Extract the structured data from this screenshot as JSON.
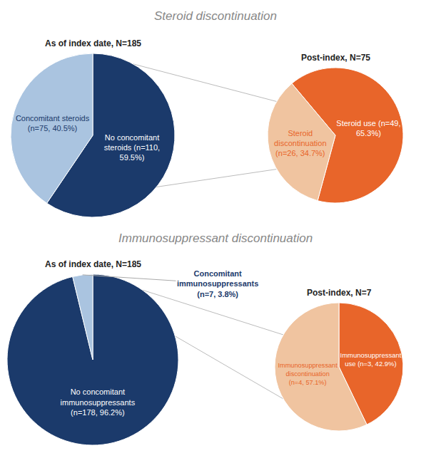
{
  "chart_data": [
    {
      "type": "pie",
      "title": "As of index date, N=185",
      "annotations": [
        {
          "text": "Steroid discontinuation"
        }
      ],
      "categories": [
        "No concomitant\nsteroids (n=110,\n59.5%)",
        "Concomitant steroids\n(n=75, 40.5%)"
      ],
      "values": [
        110,
        75
      ],
      "colors": [
        "#1b3a6b",
        "#aac4e0"
      ]
    },
    {
      "type": "pie",
      "title": "Post-index, N=75",
      "categories": [
        "Steroid use (n=49,\n65.3%)",
        "Steroid\ndiscontinuation\n(n=26, 34.7%)"
      ],
      "values": [
        49,
        26
      ],
      "colors": [
        "#e8652a",
        "#f0c4a0"
      ]
    },
    {
      "type": "pie",
      "title": "As of index date, N=185",
      "annotations": [
        {
          "text": "Immunosuppressant discontinuation"
        }
      ],
      "categories": [
        "No concomitant\nimmunosuppressants\n(n=178, 96.2%)",
        "Concomitant\nimmunosuppressants\n(n=7, 3.8%)"
      ],
      "values": [
        178,
        7
      ],
      "colors": [
        "#1b3a6b",
        "#aac4e0"
      ]
    },
    {
      "type": "pie",
      "title": "Post-index, N=7",
      "categories": [
        "Immunosuppressant\nuse (n=3, 42.9%)",
        "Immunosuppressant\ndiscontinuation\n(n=4, 57.1%)"
      ],
      "values": [
        3,
        4
      ],
      "colors": [
        "#e8652a",
        "#f0c4a0"
      ]
    }
  ]
}
